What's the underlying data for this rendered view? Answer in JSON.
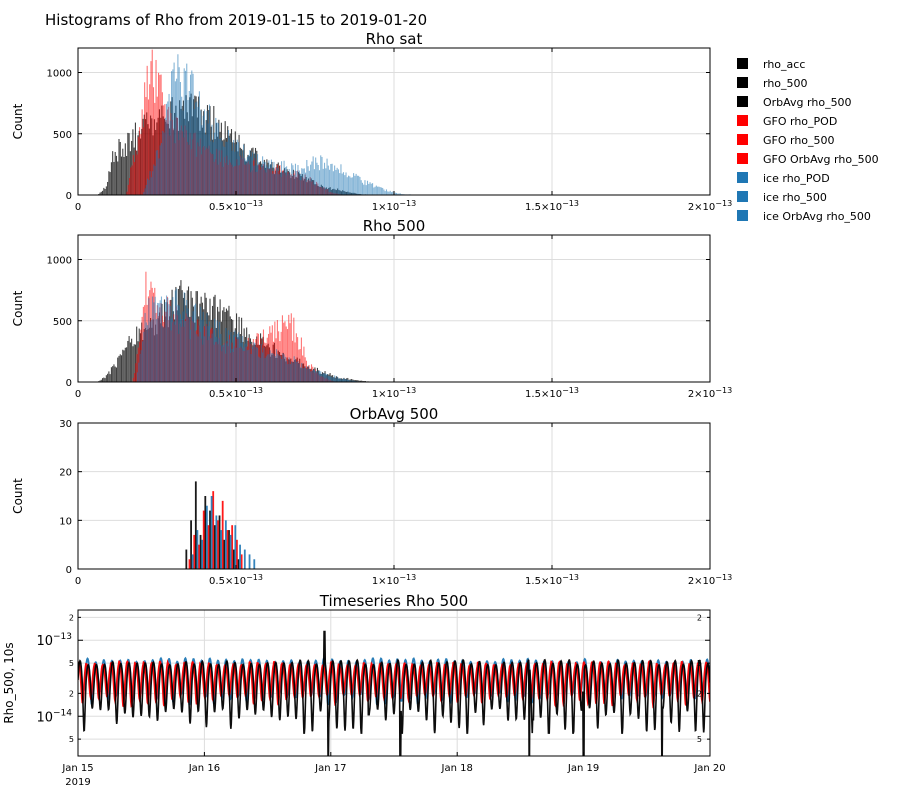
{
  "suptitle": "Histograms of Rho from 2019-01-15 to 2019-01-20",
  "legend": [
    {
      "label": "rho_acc",
      "color": "#000000"
    },
    {
      "label": "rho_500",
      "color": "#000000"
    },
    {
      "label": "OrbAvg rho_500",
      "color": "#000000"
    },
    {
      "label": "GFO rho_POD",
      "color": "#ff0000"
    },
    {
      "label": "GFO rho_500",
      "color": "#ff0000"
    },
    {
      "label": "GFO OrbAvg rho_500",
      "color": "#ff0000"
    },
    {
      "label": "ice rho_POD",
      "color": "#1f77b4"
    },
    {
      "label": "ice rho_500",
      "color": "#1f77b4"
    },
    {
      "label": "ice OrbAvg rho_500",
      "color": "#1f77b4"
    }
  ],
  "chart_data": [
    {
      "type": "bar",
      "title": "Rho sat",
      "xlabel": "",
      "ylabel": "Count",
      "xlim": [
        0,
        2e-13
      ],
      "ylim": [
        0,
        1200
      ],
      "xticks": [
        {
          "v": 0,
          "base": "0",
          "exp": ""
        },
        {
          "v": 5e-14,
          "base": "0.5×10",
          "exp": "−13"
        },
        {
          "v": 1e-13,
          "base": "1×10",
          "exp": "−13"
        },
        {
          "v": 1.5e-13,
          "base": "1.5×10",
          "exp": "−13"
        },
        {
          "v": 2e-13,
          "base": "2×10",
          "exp": "−13"
        }
      ],
      "yticks": [
        0,
        500,
        1000
      ],
      "series": [
        {
          "color": "#000000",
          "profile": [
            [
              0.06,
              0
            ],
            [
              0.09,
              80
            ],
            [
              0.11,
              360
            ],
            [
              0.16,
              430
            ],
            [
              0.19,
              520
            ],
            [
              0.28,
              640
            ],
            [
              0.35,
              720
            ],
            [
              0.42,
              620
            ],
            [
              0.5,
              420
            ],
            [
              0.6,
              250
            ],
            [
              0.7,
              150
            ],
            [
              0.78,
              70
            ],
            [
              0.85,
              25
            ],
            [
              0.9,
              5
            ],
            [
              0.95,
              0
            ]
          ]
        },
        {
          "color": "#ff0000",
          "profile": [
            [
              0.15,
              0
            ],
            [
              0.17,
              300
            ],
            [
              0.2,
              620
            ],
            [
              0.22,
              1060
            ],
            [
              0.25,
              900
            ],
            [
              0.28,
              640
            ],
            [
              0.34,
              480
            ],
            [
              0.4,
              350
            ],
            [
              0.5,
              270
            ],
            [
              0.6,
              230
            ],
            [
              0.7,
              160
            ],
            [
              0.76,
              90
            ],
            [
              0.8,
              20
            ],
            [
              0.84,
              0
            ]
          ]
        },
        {
          "color": "#1f77b4",
          "profile": [
            [
              0.2,
              0
            ],
            [
              0.24,
              280
            ],
            [
              0.28,
              700
            ],
            [
              0.3,
              1020
            ],
            [
              0.34,
              900
            ],
            [
              0.38,
              800
            ],
            [
              0.42,
              560
            ],
            [
              0.5,
              380
            ],
            [
              0.6,
              240
            ],
            [
              0.7,
              220
            ],
            [
              0.75,
              280
            ],
            [
              0.78,
              270
            ],
            [
              0.85,
              190
            ],
            [
              0.9,
              110
            ],
            [
              0.97,
              40
            ],
            [
              1.02,
              8
            ],
            [
              1.08,
              0
            ]
          ]
        }
      ]
    },
    {
      "type": "bar",
      "title": "Rho 500",
      "xlabel": "",
      "ylabel": "Count",
      "xlim": [
        0,
        2e-13
      ],
      "ylim": [
        0,
        1200
      ],
      "xticks": [
        {
          "v": 0,
          "base": "0",
          "exp": ""
        },
        {
          "v": 5e-14,
          "base": "0.5×10",
          "exp": "−13"
        },
        {
          "v": 1e-13,
          "base": "1×10",
          "exp": "−13"
        },
        {
          "v": 1.5e-13,
          "base": "1.5×10",
          "exp": "−13"
        },
        {
          "v": 2e-13,
          "base": "2×10",
          "exp": "−13"
        }
      ],
      "yticks": [
        0,
        500,
        1000
      ],
      "series": [
        {
          "color": "#000000",
          "profile": [
            [
              0.06,
              0
            ],
            [
              0.09,
              50
            ],
            [
              0.13,
              200
            ],
            [
              0.17,
              380
            ],
            [
              0.22,
              470
            ],
            [
              0.28,
              600
            ],
            [
              0.33,
              700
            ],
            [
              0.4,
              630
            ],
            [
              0.48,
              520
            ],
            [
              0.56,
              350
            ],
            [
              0.65,
              220
            ],
            [
              0.74,
              110
            ],
            [
              0.82,
              40
            ],
            [
              0.9,
              8
            ],
            [
              0.94,
              0
            ]
          ]
        },
        {
          "color": "#ff0000",
          "profile": [
            [
              0.17,
              0
            ],
            [
              0.2,
              500
            ],
            [
              0.21,
              780
            ],
            [
              0.25,
              620
            ],
            [
              0.3,
              560
            ],
            [
              0.38,
              430
            ],
            [
              0.46,
              320
            ],
            [
              0.54,
              300
            ],
            [
              0.58,
              360
            ],
            [
              0.62,
              430
            ],
            [
              0.65,
              470
            ],
            [
              0.68,
              460
            ],
            [
              0.7,
              340
            ],
            [
              0.72,
              170
            ],
            [
              0.76,
              60
            ],
            [
              0.8,
              10
            ],
            [
              0.82,
              0
            ]
          ]
        },
        {
          "color": "#1f77b4",
          "profile": [
            [
              0.18,
              0
            ],
            [
              0.2,
              420
            ],
            [
              0.23,
              640
            ],
            [
              0.27,
              600
            ],
            [
              0.3,
              680
            ],
            [
              0.36,
              540
            ],
            [
              0.44,
              420
            ],
            [
              0.52,
              320
            ],
            [
              0.6,
              240
            ],
            [
              0.7,
              160
            ],
            [
              0.76,
              80
            ],
            [
              0.82,
              35
            ],
            [
              0.87,
              10
            ],
            [
              0.9,
              0
            ]
          ]
        }
      ]
    },
    {
      "type": "bar",
      "title": "OrbAvg 500",
      "xlabel": "",
      "ylabel": "Count",
      "xlim": [
        0,
        2e-13
      ],
      "ylim": [
        0,
        30
      ],
      "xticks": [
        {
          "v": 0,
          "base": "0",
          "exp": ""
        },
        {
          "v": 5e-14,
          "base": "0.5×10",
          "exp": "−13"
        },
        {
          "v": 1e-13,
          "base": "1×10",
          "exp": "−13"
        },
        {
          "v": 1.5e-13,
          "base": "1.5×10",
          "exp": "−13"
        },
        {
          "v": 2e-13,
          "base": "2×10",
          "exp": "−13"
        }
      ],
      "yticks": [
        0,
        10,
        20,
        30
      ],
      "series": [
        {
          "color": "#000000",
          "x": [
            0.34,
            0.355,
            0.37,
            0.385,
            0.4,
            0.415,
            0.43,
            0.445,
            0.46,
            0.475,
            0.49,
            0.505
          ],
          "values": [
            4,
            10,
            18,
            7,
            15,
            12,
            9,
            11,
            6,
            8,
            4,
            2
          ]
        },
        {
          "color": "#ff0000",
          "x": [
            0.35,
            0.365,
            0.38,
            0.395,
            0.41,
            0.425,
            0.44,
            0.455,
            0.47,
            0.485,
            0.5,
            0.515
          ],
          "values": [
            2,
            7,
            5,
            12,
            9,
            16,
            10,
            14,
            8,
            9,
            6,
            3
          ]
        },
        {
          "color": "#1f77b4",
          "x": [
            0.36,
            0.375,
            0.39,
            0.405,
            0.42,
            0.435,
            0.45,
            0.465,
            0.48,
            0.495,
            0.51,
            0.525,
            0.54,
            0.555
          ],
          "values": [
            3,
            8,
            6,
            13,
            15,
            11,
            8,
            10,
            7,
            9,
            5,
            4,
            3,
            2
          ]
        }
      ]
    },
    {
      "type": "line",
      "title": "Timeseries Rho 500",
      "xlabel": "",
      "ylabel": "Rho_500, 10s",
      "yscale": "log",
      "xlim": [
        0,
        5
      ],
      "ylim": [
        3e-15,
        2.5e-13
      ],
      "xticks": [
        {
          "v": 0,
          "label": "Jan 15",
          "sub": "2019"
        },
        {
          "v": 1,
          "label": "Jan 16",
          "sub": ""
        },
        {
          "v": 2,
          "label": "Jan 17",
          "sub": ""
        },
        {
          "v": 3,
          "label": "Jan 18",
          "sub": ""
        },
        {
          "v": 4,
          "label": "Jan 19",
          "sub": ""
        },
        {
          "v": 5,
          "label": "Jan 20",
          "sub": ""
        }
      ],
      "major_yticks": [
        {
          "v": 1e-13,
          "base": "10",
          "exp": "−13"
        },
        {
          "v": 1e-14,
          "base": "10",
          "exp": "−14"
        }
      ],
      "minor_yticks": [
        {
          "v": 2e-13,
          "label": "2"
        },
        {
          "v": 5e-14,
          "label": "5"
        },
        {
          "v": 2e-14,
          "label": "2"
        },
        {
          "v": 5e-15,
          "label": "5"
        }
      ],
      "series": [
        {
          "color": "#1f77b4",
          "center": 3.6e-14,
          "amp": 2e-14,
          "period": 0.0645,
          "phase": 0.5
        },
        {
          "color": "#ff0000",
          "center": 3.3e-14,
          "amp": 1.8e-14,
          "period": 0.0645,
          "phase": 1.2
        },
        {
          "color": "#000000",
          "center": 3e-14,
          "amp": 2.3e-14,
          "period": 0.0645,
          "phase": 0.0,
          "dips": [
            [
              1.98,
              3e-15
            ],
            [
              2.55,
              3e-15
            ],
            [
              3.57,
              3e-15
            ],
            [
              4.0,
              2.5e-15
            ],
            [
              4.62,
              3e-15
            ],
            [
              2.3,
              1.05e-14
            ],
            [
              1.95,
              1.3e-13
            ],
            [
              3.6,
              9e-15
            ]
          ]
        }
      ]
    }
  ]
}
